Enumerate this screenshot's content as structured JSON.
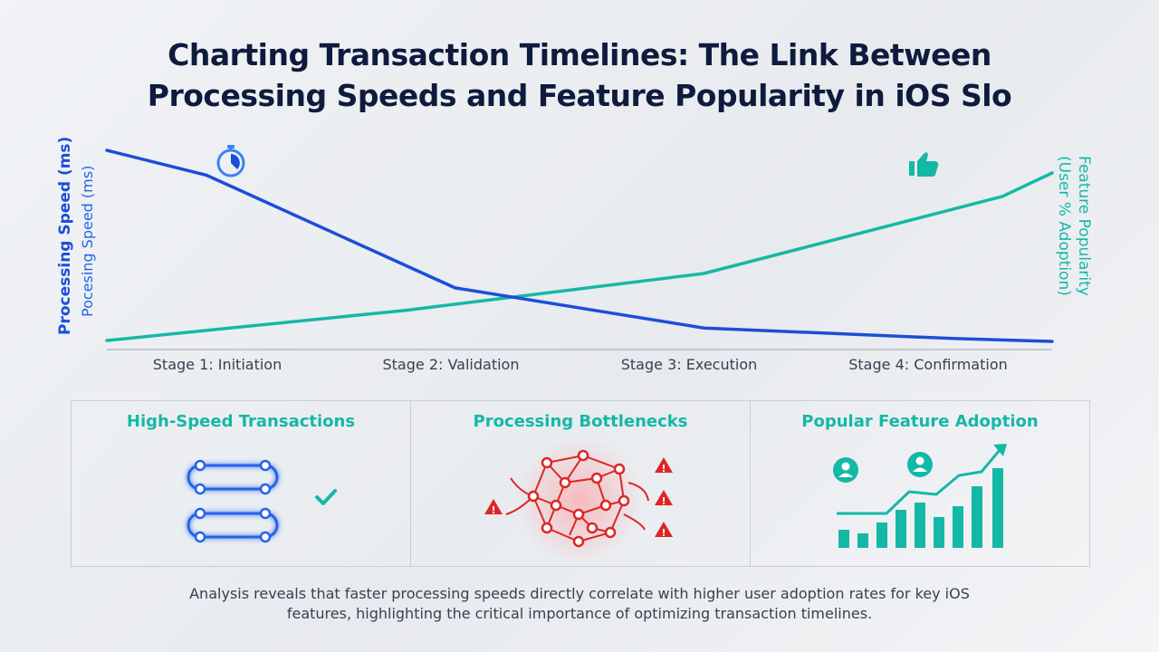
{
  "title": {
    "line1": "Charting Transaction Timelines: The Link Between",
    "line2": "Processing Speeds and Feature Popularity in iOS Slo"
  },
  "colors": {
    "speed": "#1d4ed8",
    "popularity": "#14b8a6",
    "bottleneck": "#dc2626"
  },
  "chart_data": {
    "type": "line",
    "title": "Charting Transaction Timelines: The Link Between Processing Speeds and Feature Popularity in iOS Slo",
    "categories": [
      "Stage 1: Initiation",
      "Stage 2: Validation",
      "Stage 3: Execution",
      "Stage 4: Confirmation"
    ],
    "ylabel_left": "Processing Speed (ms)",
    "ylabel_left_sub": "Pocesing Speed (ms)",
    "ylabel_right": "Feature Popularity",
    "ylabel_right_sub": "(User % Adoption)",
    "grid": false,
    "series": [
      {
        "name": "Processing Speed (ms)",
        "axis": "left",
        "x": [
          0,
          0.5,
          1.75,
          3.0,
          4.25,
          4.75
        ],
        "values": [
          100,
          87,
          28,
          7,
          1.5,
          0
        ]
      },
      {
        "name": "Feature Popularity (User % Adoption)",
        "axis": "right",
        "x": [
          0,
          1.5,
          3.0,
          4.5,
          4.75
        ],
        "values": [
          0,
          18,
          40,
          86,
          100
        ]
      }
    ],
    "icons": [
      "stopwatch-icon",
      "thumbs-up-icon"
    ]
  },
  "panels": [
    {
      "title": "High-Speed Transactions",
      "icon": "fast-transaction-flow-icon"
    },
    {
      "title": "Processing Bottlenecks",
      "icon": "bottleneck-network-icon"
    },
    {
      "title": "Popular Feature Adoption",
      "icon": "adoption-growth-chart-icon"
    }
  ],
  "footer": {
    "line1": "Analysis reveals that faster processing speeds directly correlate with higher user adoption rates for key iOS",
    "line2": "features, highlighting the critical importance of optimizing transaction timelines."
  }
}
